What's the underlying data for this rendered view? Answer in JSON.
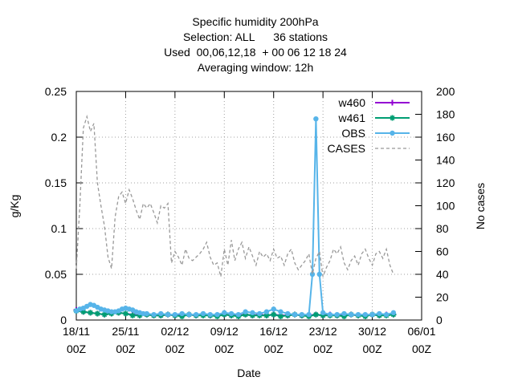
{
  "chart_data": {
    "type": "line",
    "title_lines": [
      "Specific humidity 200hPa",
      "Selection: ALL      36 stations",
      "Used  00,06,12,18  + 00 06 12 18 24",
      "Averaging window: 12h"
    ],
    "xlabel": "Date",
    "ylabel": "g/Kg",
    "y2label": "No cases",
    "x_ticks": [
      {
        "day": 0,
        "line1": "18/11",
        "line2": "00Z"
      },
      {
        "day": 7,
        "line1": "25/11",
        "line2": "00Z"
      },
      {
        "day": 14,
        "line1": "02/12",
        "line2": "00Z"
      },
      {
        "day": 21,
        "line1": "09/12",
        "line2": "00Z"
      },
      {
        "day": 28,
        "line1": "16/12",
        "line2": "00Z"
      },
      {
        "day": 35,
        "line1": "23/12",
        "line2": "00Z"
      },
      {
        "day": 42,
        "line1": "30/12",
        "line2": "00Z"
      },
      {
        "day": 49,
        "line1": "06/01",
        "line2": "00Z"
      }
    ],
    "xlim": [
      0,
      49
    ],
    "ylim": [
      0,
      0.25
    ],
    "y_ticks": [
      "0",
      "0.05",
      "0.1",
      "0.15",
      "0.2",
      "0.25"
    ],
    "y2lim": [
      0,
      200
    ],
    "y2_ticks": [
      "0",
      "20",
      "40",
      "60",
      "80",
      "100",
      "120",
      "140",
      "160",
      "180",
      "200"
    ],
    "grid": true,
    "legend_position": "top-right",
    "series": [
      {
        "name": "w460",
        "axis": "y",
        "color": "#9400d3",
        "marker": "plus",
        "x": [
          0,
          1,
          2,
          3,
          4,
          5,
          6,
          7,
          8,
          9,
          10,
          11,
          12,
          13,
          14,
          15,
          16,
          17,
          18,
          19,
          20,
          21,
          22,
          23,
          24,
          25,
          26,
          27,
          28,
          29,
          30,
          31,
          32,
          33,
          34,
          35,
          36,
          37,
          38,
          39,
          40,
          41,
          42,
          43,
          44,
          45
        ],
        "y": [
          0.011,
          0.009,
          0.008,
          0.007,
          0.006,
          0.007,
          0.008,
          0.007,
          0.006,
          0.005,
          0.006,
          0.005,
          0.005,
          0.006,
          0.005,
          0.005,
          0.006,
          0.005,
          0.006,
          0.005,
          0.005,
          0.006,
          0.005,
          0.005,
          0.006,
          0.005,
          0.006,
          0.005,
          0.006,
          0.005,
          0.005,
          0.006,
          0.005,
          0.005,
          0.006,
          0.005,
          0.006,
          0.005,
          0.005,
          0.006,
          0.005,
          0.005,
          0.006,
          0.005,
          0.006,
          0.006
        ]
      },
      {
        "name": "w461",
        "axis": "y",
        "color": "#009e73",
        "marker": "star",
        "x": [
          0,
          1,
          2,
          3,
          4,
          5,
          6,
          7,
          8,
          9,
          10,
          11,
          12,
          13,
          14,
          15,
          16,
          17,
          18,
          19,
          20,
          21,
          22,
          23,
          24,
          25,
          26,
          27,
          28,
          29,
          30,
          31,
          32,
          33,
          34,
          35,
          36,
          37,
          38,
          39,
          40,
          41,
          42,
          43,
          44,
          45
        ],
        "y": [
          0.01,
          0.009,
          0.008,
          0.007,
          0.006,
          0.007,
          0.008,
          0.007,
          0.005,
          0.005,
          0.006,
          0.005,
          0.005,
          0.006,
          0.005,
          0.004,
          0.006,
          0.005,
          0.005,
          0.005,
          0.004,
          0.006,
          0.005,
          0.004,
          0.006,
          0.005,
          0.005,
          0.005,
          0.006,
          0.004,
          0.005,
          0.006,
          0.005,
          0.004,
          0.006,
          0.005,
          0.005,
          0.005,
          0.004,
          0.006,
          0.005,
          0.004,
          0.006,
          0.005,
          0.005,
          0.006
        ]
      },
      {
        "name": "OBS",
        "axis": "y",
        "color": "#56b4e9",
        "marker": "circle",
        "x": [
          0,
          0.5,
          1,
          1.5,
          2,
          2.5,
          3,
          3.5,
          4,
          4.5,
          5,
          5.5,
          6,
          6.5,
          7,
          7.5,
          8,
          8.5,
          9,
          9.5,
          10,
          11,
          12,
          13,
          14,
          15,
          16,
          17,
          18,
          19,
          20,
          21,
          22,
          23,
          24,
          25,
          26,
          27,
          28,
          29,
          30,
          31,
          32,
          33,
          33.5,
          34,
          34.5,
          35,
          36,
          37,
          38,
          39,
          40,
          41,
          42,
          43,
          44,
          45
        ],
        "y": [
          0.01,
          0.012,
          0.013,
          0.015,
          0.017,
          0.016,
          0.014,
          0.012,
          0.011,
          0.01,
          0.009,
          0.009,
          0.01,
          0.012,
          0.013,
          0.012,
          0.011,
          0.009,
          0.008,
          0.007,
          0.007,
          0.006,
          0.007,
          0.006,
          0.006,
          0.007,
          0.006,
          0.006,
          0.007,
          0.006,
          0.006,
          0.008,
          0.007,
          0.006,
          0.009,
          0.008,
          0.007,
          0.009,
          0.012,
          0.009,
          0.007,
          0.006,
          0.006,
          0.006,
          0.05,
          0.22,
          0.05,
          0.008,
          0.006,
          0.006,
          0.007,
          0.006,
          0.006,
          0.006,
          0.006,
          0.007,
          0.006,
          0.008
        ]
      },
      {
        "name": "CASES",
        "axis": "y2",
        "color": "#999999",
        "marker": "none",
        "x": [
          0,
          0.5,
          1,
          1.5,
          2,
          2.5,
          3,
          3.5,
          4,
          4.5,
          5,
          5.5,
          6,
          6.5,
          7,
          7.5,
          8,
          8.5,
          9,
          9.5,
          10,
          10.5,
          11,
          11.5,
          12,
          12.5,
          13,
          13.5,
          14,
          14.5,
          15,
          15.5,
          16,
          16.5,
          17,
          17.5,
          18,
          18.5,
          19,
          19.5,
          20,
          20.5,
          21,
          21.5,
          22,
          22.5,
          23,
          23.5,
          24,
          24.5,
          25,
          25.5,
          26,
          26.5,
          27,
          27.5,
          28,
          28.5,
          29,
          29.5,
          30,
          30.5,
          31,
          31.5,
          32,
          32.5,
          33,
          33.5,
          34,
          34.5,
          35,
          35.5,
          36,
          36.5,
          37,
          37.5,
          38,
          38.5,
          39,
          39.5,
          40,
          40.5,
          41,
          41.5,
          42,
          42.5,
          43,
          43.5,
          44,
          44.5,
          45
        ],
        "y": [
          45,
          100,
          168,
          178,
          165,
          172,
          120,
          100,
          82,
          55,
          45,
          90,
          108,
          112,
          102,
          114,
          106,
          96,
          88,
          102,
          98,
          102,
          94,
          85,
          100,
          98,
          102,
          50,
          60,
          55,
          48,
          62,
          54,
          52,
          55,
          58,
          62,
          68,
          55,
          48,
          50,
          38,
          62,
          48,
          70,
          52,
          62,
          68,
          54,
          64,
          56,
          48,
          60,
          55,
          58,
          52,
          62,
          54,
          56,
          48,
          58,
          62,
          50,
          44,
          48,
          52,
          58,
          40,
          54,
          60,
          38,
          46,
          52,
          62,
          58,
          64,
          50,
          44,
          52,
          56,
          48,
          58,
          62,
          54,
          48,
          58,
          60,
          54,
          62,
          48,
          40
        ]
      }
    ]
  }
}
